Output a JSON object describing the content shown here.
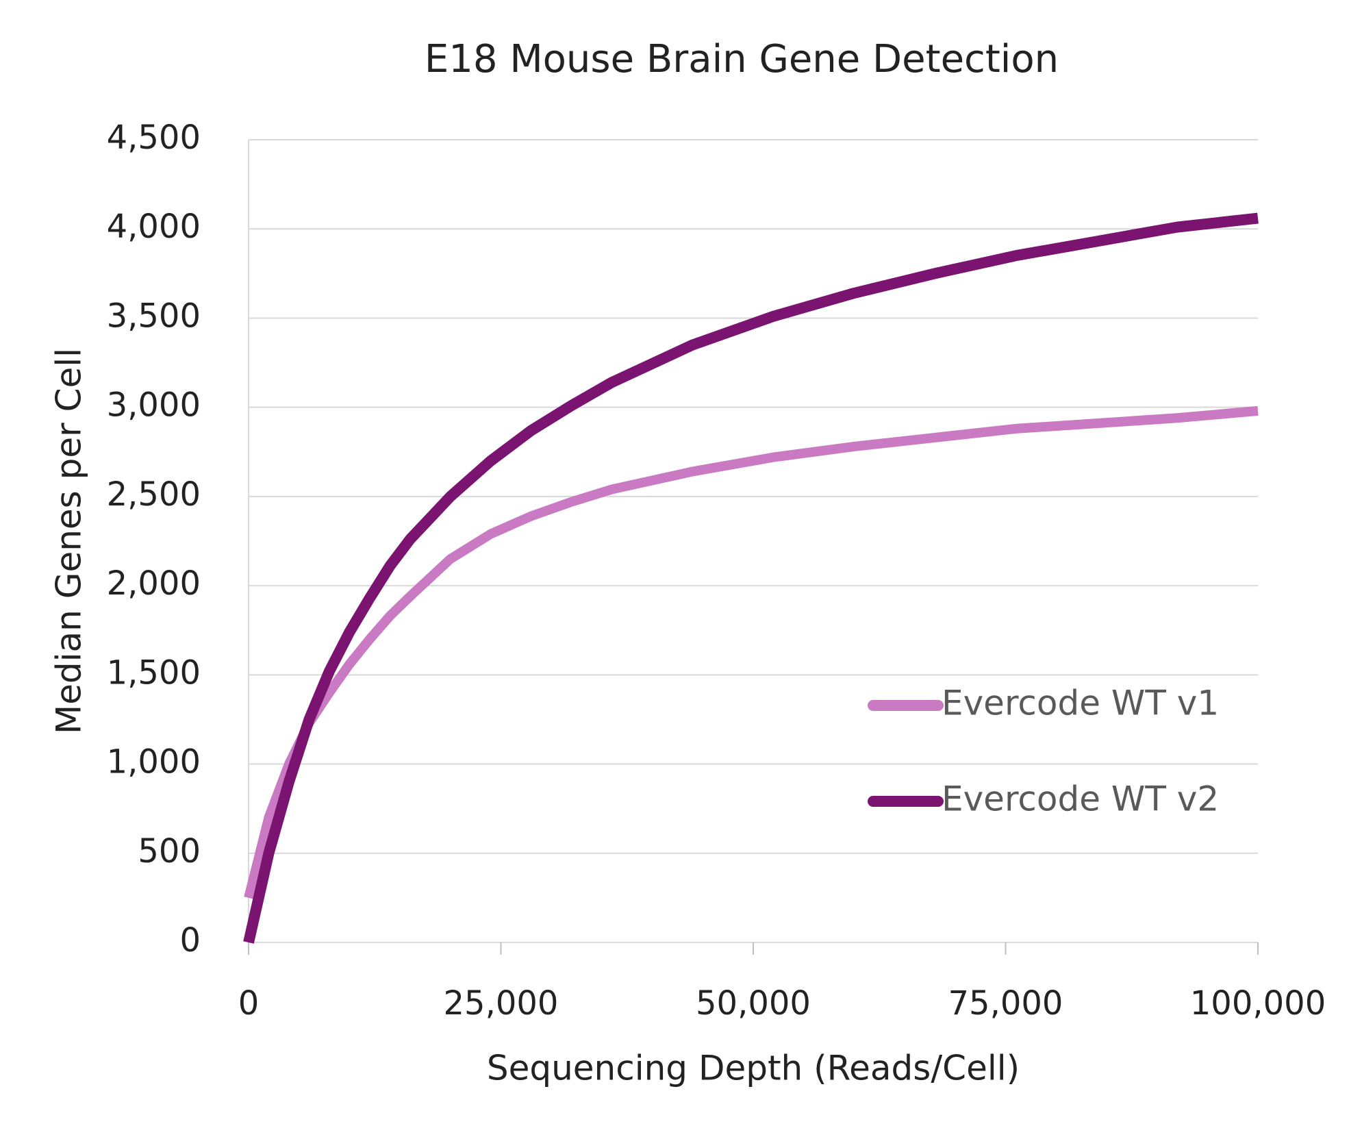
{
  "chart_data": {
    "type": "line",
    "title": "E18 Mouse Brain Gene Detection",
    "x_label": "Sequencing Depth (Reads/Cell)",
    "y_label": "Median Genes per Cell",
    "x": [
      0,
      2000,
      4000,
      6000,
      8000,
      10000,
      12000,
      14000,
      16000,
      20000,
      24000,
      28000,
      32000,
      36000,
      44000,
      52000,
      60000,
      68000,
      76000,
      84000,
      92000,
      100000
    ],
    "series": [
      {
        "name": "Evercode WT v1",
        "color": "#c97ac3",
        "values": [
          250,
          700,
          1000,
          1230,
          1400,
          1560,
          1700,
          1830,
          1940,
          2150,
          2290,
          2390,
          2470,
          2540,
          2640,
          2720,
          2780,
          2830,
          2880,
          2910,
          2940,
          2980
        ]
      },
      {
        "name": "Evercode WT v2",
        "color": "#7b1470",
        "values": [
          0,
          500,
          900,
          1250,
          1520,
          1740,
          1930,
          2110,
          2260,
          2500,
          2700,
          2870,
          3010,
          3140,
          3350,
          3510,
          3640,
          3750,
          3850,
          3930,
          4010,
          4060
        ]
      }
    ],
    "xlim": [
      0,
      100000
    ],
    "xticks": [
      0,
      {
        "value": 25000,
        "label": "25,000"
      },
      {
        "value": 50000,
        "label": "50,000"
      },
      {
        "value": 75000,
        "label": "75,000"
      },
      {
        "value": 100000,
        "label": "100,000"
      }
    ],
    "ylim": [
      0,
      4500
    ],
    "yticks": [
      0,
      500,
      {
        "value": 1000,
        "label": "1,000"
      },
      {
        "value": 1500,
        "label": "1,500"
      },
      {
        "value": 2000,
        "label": "2,000"
      },
      {
        "value": 2500,
        "label": "2,500"
      },
      {
        "value": 3000,
        "label": "3,000"
      },
      {
        "value": 3500,
        "label": "3,500"
      },
      {
        "value": 4000,
        "label": "4,000"
      },
      {
        "value": 4500,
        "label": "4,500"
      }
    ],
    "grid": true,
    "legend": "lower right"
  }
}
